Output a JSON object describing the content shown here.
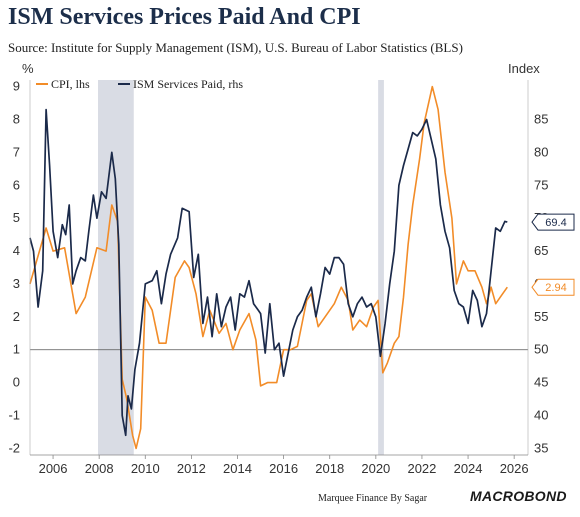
{
  "title": "ISM Services Prices Paid And CPI",
  "subtitle": "Source: Institute for Supply Management (ISM), U.S. Bureau of Labor Statistics (BLS)",
  "credit": "Marquee Finance By Sagar",
  "brand": "MACROBOND",
  "chart_data": {
    "type": "line",
    "left_axis": {
      "unit": "%",
      "min": -2.2,
      "max": 9.2,
      "ticks": [
        -2,
        -1,
        0,
        1,
        2,
        3,
        4,
        5,
        6,
        7,
        8,
        9
      ]
    },
    "right_axis": {
      "unit": "Index",
      "ticks": [
        35,
        40,
        45,
        50,
        55,
        60,
        65,
        70,
        75,
        80,
        85
      ]
    },
    "x_axis": {
      "min": 2005.0,
      "max": 2026.6,
      "ticks": [
        2006,
        2008,
        2010,
        2012,
        2014,
        2016,
        2018,
        2020,
        2022,
        2024,
        2026
      ]
    },
    "reference_line": {
      "axis": "right",
      "value": 50
    },
    "recessions": [
      {
        "start": 2007.95,
        "end": 2009.5
      },
      {
        "start": 2020.1,
        "end": 2020.35
      }
    ],
    "legend": [
      "CPI, lhs",
      "ISM Services Paid, rhs"
    ],
    "series": [
      {
        "name": "CPI, lhs",
        "axis": "left",
        "color": "#f28c28",
        "end_label": "2.94",
        "points": [
          [
            2005.0,
            3.0
          ],
          [
            2005.7,
            4.7
          ],
          [
            2006.0,
            4.0
          ],
          [
            2006.5,
            4.1
          ],
          [
            2007.0,
            2.1
          ],
          [
            2007.4,
            2.6
          ],
          [
            2007.9,
            4.1
          ],
          [
            2008.3,
            4.0
          ],
          [
            2008.55,
            5.4
          ],
          [
            2008.8,
            4.9
          ],
          [
            2009.0,
            0.1
          ],
          [
            2009.2,
            -0.5
          ],
          [
            2009.45,
            -1.6
          ],
          [
            2009.6,
            -2.0
          ],
          [
            2009.8,
            -1.4
          ],
          [
            2010.0,
            2.6
          ],
          [
            2010.3,
            2.2
          ],
          [
            2010.6,
            1.2
          ],
          [
            2010.9,
            1.2
          ],
          [
            2011.3,
            3.2
          ],
          [
            2011.7,
            3.7
          ],
          [
            2011.9,
            3.5
          ],
          [
            2012.2,
            2.7
          ],
          [
            2012.5,
            1.4
          ],
          [
            2012.8,
            2.2
          ],
          [
            2013.2,
            1.5
          ],
          [
            2013.5,
            1.8
          ],
          [
            2013.8,
            1.0
          ],
          [
            2014.1,
            1.6
          ],
          [
            2014.5,
            2.1
          ],
          [
            2014.8,
            1.3
          ],
          [
            2015.0,
            -0.1
          ],
          [
            2015.3,
            0.0
          ],
          [
            2015.7,
            0.0
          ],
          [
            2016.0,
            1.0
          ],
          [
            2016.3,
            1.0
          ],
          [
            2016.6,
            1.1
          ],
          [
            2017.0,
            2.5
          ],
          [
            2017.2,
            2.7
          ],
          [
            2017.5,
            1.7
          ],
          [
            2017.9,
            2.1
          ],
          [
            2018.2,
            2.4
          ],
          [
            2018.5,
            2.9
          ],
          [
            2018.8,
            2.5
          ],
          [
            2019.0,
            1.6
          ],
          [
            2019.3,
            1.9
          ],
          [
            2019.6,
            1.7
          ],
          [
            2019.9,
            2.3
          ],
          [
            2020.1,
            2.5
          ],
          [
            2020.3,
            0.3
          ],
          [
            2020.5,
            0.6
          ],
          [
            2020.8,
            1.2
          ],
          [
            2021.0,
            1.4
          ],
          [
            2021.2,
            2.6
          ],
          [
            2021.4,
            4.2
          ],
          [
            2021.6,
            5.4
          ],
          [
            2021.9,
            6.8
          ],
          [
            2022.1,
            7.9
          ],
          [
            2022.45,
            9.0
          ],
          [
            2022.7,
            8.3
          ],
          [
            2023.0,
            6.4
          ],
          [
            2023.3,
            5.0
          ],
          [
            2023.5,
            3.0
          ],
          [
            2023.8,
            3.7
          ],
          [
            2024.0,
            3.4
          ],
          [
            2024.3,
            3.4
          ],
          [
            2024.6,
            2.9
          ],
          [
            2024.8,
            2.4
          ],
          [
            2025.0,
            2.9
          ],
          [
            2025.2,
            2.4
          ],
          [
            2025.5,
            2.7
          ],
          [
            2025.7,
            2.9
          ]
        ]
      },
      {
        "name": "ISM Services Paid, rhs",
        "axis": "right",
        "color": "#1b2a4a",
        "end_label": "69.4",
        "points": [
          [
            2005.0,
            67.0
          ],
          [
            2005.15,
            65.0
          ],
          [
            2005.35,
            56.5
          ],
          [
            2005.55,
            62.0
          ],
          [
            2005.7,
            86.5
          ],
          [
            2005.85,
            78.0
          ],
          [
            2006.0,
            68.0
          ],
          [
            2006.2,
            64.0
          ],
          [
            2006.4,
            69.0
          ],
          [
            2006.55,
            67.5
          ],
          [
            2006.7,
            72.0
          ],
          [
            2006.85,
            60.0
          ],
          [
            2007.0,
            62.0
          ],
          [
            2007.2,
            64.0
          ],
          [
            2007.4,
            63.5
          ],
          [
            2007.55,
            68.0
          ],
          [
            2007.75,
            73.5
          ],
          [
            2007.9,
            70.0
          ],
          [
            2008.1,
            74.0
          ],
          [
            2008.3,
            73.0
          ],
          [
            2008.55,
            80.0
          ],
          [
            2008.7,
            76.0
          ],
          [
            2008.85,
            66.0
          ],
          [
            2009.0,
            40.0
          ],
          [
            2009.15,
            37.0
          ],
          [
            2009.25,
            43.0
          ],
          [
            2009.4,
            41.0
          ],
          [
            2009.55,
            47.0
          ],
          [
            2009.75,
            51.0
          ],
          [
            2010.0,
            60.0
          ],
          [
            2010.3,
            60.5
          ],
          [
            2010.5,
            62.0
          ],
          [
            2010.7,
            57.0
          ],
          [
            2010.9,
            61.5
          ],
          [
            2011.1,
            64.5
          ],
          [
            2011.4,
            67.0
          ],
          [
            2011.6,
            71.5
          ],
          [
            2011.9,
            71.0
          ],
          [
            2012.1,
            61.0
          ],
          [
            2012.3,
            64.5
          ],
          [
            2012.5,
            54.0
          ],
          [
            2012.7,
            58.0
          ],
          [
            2012.9,
            52.0
          ],
          [
            2013.1,
            58.5
          ],
          [
            2013.3,
            53.5
          ],
          [
            2013.5,
            56.5
          ],
          [
            2013.7,
            58.0
          ],
          [
            2013.9,
            53.0
          ],
          [
            2014.1,
            58.5
          ],
          [
            2014.3,
            58.0
          ],
          [
            2014.5,
            60.5
          ],
          [
            2014.7,
            57.0
          ],
          [
            2014.9,
            56.0
          ],
          [
            2015.0,
            55.5
          ],
          [
            2015.2,
            49.5
          ],
          [
            2015.4,
            57.0
          ],
          [
            2015.6,
            50.0
          ],
          [
            2015.8,
            51.0
          ],
          [
            2016.0,
            46.0
          ],
          [
            2016.2,
            49.5
          ],
          [
            2016.4,
            53.0
          ],
          [
            2016.6,
            55.0
          ],
          [
            2016.8,
            56.0
          ],
          [
            2017.0,
            58.0
          ],
          [
            2017.2,
            59.5
          ],
          [
            2017.4,
            55.0
          ],
          [
            2017.6,
            58.5
          ],
          [
            2017.8,
            62.5
          ],
          [
            2018.0,
            61.5
          ],
          [
            2018.2,
            64.0
          ],
          [
            2018.4,
            64.0
          ],
          [
            2018.6,
            63.0
          ],
          [
            2018.8,
            57.0
          ],
          [
            2019.0,
            55.0
          ],
          [
            2019.2,
            57.0
          ],
          [
            2019.4,
            58.0
          ],
          [
            2019.6,
            56.5
          ],
          [
            2019.8,
            57.0
          ],
          [
            2020.0,
            55.0
          ],
          [
            2020.2,
            49.0
          ],
          [
            2020.4,
            54.0
          ],
          [
            2020.6,
            60.0
          ],
          [
            2020.8,
            65.0
          ],
          [
            2021.0,
            75.0
          ],
          [
            2021.2,
            78.0
          ],
          [
            2021.4,
            80.5
          ],
          [
            2021.6,
            83.0
          ],
          [
            2021.8,
            82.5
          ],
          [
            2022.0,
            83.5
          ],
          [
            2022.2,
            85.0
          ],
          [
            2022.4,
            82.0
          ],
          [
            2022.6,
            79.0
          ],
          [
            2022.8,
            72.0
          ],
          [
            2023.0,
            68.0
          ],
          [
            2023.2,
            65.5
          ],
          [
            2023.4,
            59.0
          ],
          [
            2023.6,
            57.0
          ],
          [
            2023.8,
            56.5
          ],
          [
            2024.0,
            54.0
          ],
          [
            2024.2,
            59.0
          ],
          [
            2024.4,
            57.5
          ],
          [
            2024.6,
            53.5
          ],
          [
            2024.8,
            55.5
          ],
          [
            2025.0,
            62.0
          ],
          [
            2025.2,
            68.5
          ],
          [
            2025.4,
            68.0
          ],
          [
            2025.6,
            69.5
          ],
          [
            2025.7,
            69.4
          ]
        ]
      }
    ]
  }
}
